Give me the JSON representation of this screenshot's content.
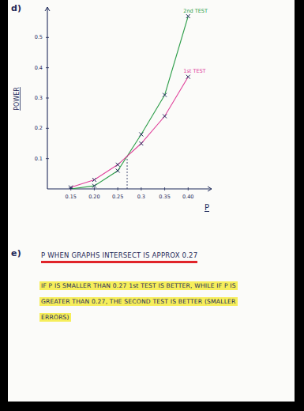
{
  "chart_data": {
    "type": "line",
    "x_label": "P",
    "y_label": "POWER",
    "x": [
      0.15,
      0.2,
      0.25,
      0.3,
      0.35,
      0.4
    ],
    "series": [
      {
        "name": "2nd TEST",
        "color": "#2e9e4a",
        "marker": "x",
        "line_style": "solid",
        "values": [
          0,
          0.01,
          0.06,
          0.18,
          0.31,
          0.57
        ]
      },
      {
        "name": "1st TEST",
        "color": "#e0409a",
        "marker": "x",
        "line_style": "solid",
        "values": [
          0.005,
          0.03,
          0.08,
          0.15,
          0.24,
          0.37
        ]
      }
    ],
    "xlim": [
      0.1,
      0.45
    ],
    "ylim": [
      0,
      0.6
    ],
    "xticks": [
      0.15,
      {
        "value": 0.2,
        "label": "0.20"
      },
      0.25,
      0.3,
      0.35,
      {
        "value": 0.4,
        "label": "0.40"
      }
    ],
    "yticks": [
      0.1,
      0.2,
      0.3,
      0.4,
      0.5
    ],
    "grid": false,
    "reference_x": 0.27
  },
  "notes": {
    "part_d": "d)",
    "part_e": "e)",
    "answer": "P WHEN GRAPHS INTERSECT IS APPROX 0.27",
    "conclusion": "IF P IS SMALLER THAN 0.27 1st TEST IS BETTER, WHILE IF P IS GREATER THAN 0.27, THE SECOND TEST IS BETTER (SMALLER ERRORS)"
  }
}
